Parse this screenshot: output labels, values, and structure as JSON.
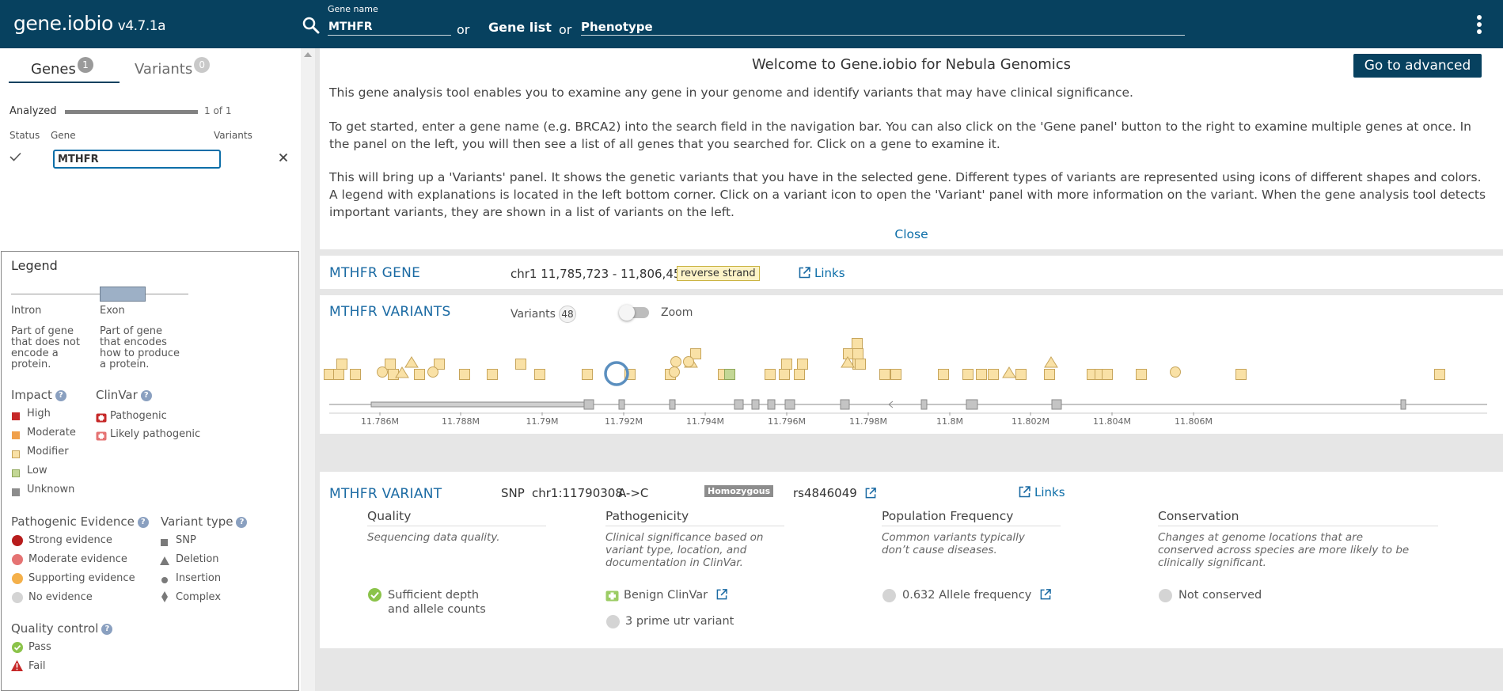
{
  "header": {
    "app_name": "gene.iobio",
    "version": "v4.7.1a",
    "gene_field_label": "Gene name",
    "gene_value": "MTHFR",
    "or_1": "or",
    "gene_list_label": "Gene list",
    "or_2": "or",
    "phenotype_placeholder": "Phenotype"
  },
  "left": {
    "tabs": [
      {
        "label": "Genes",
        "count": "1"
      },
      {
        "label": "Variants",
        "count": "0"
      }
    ],
    "analyzed_label": "Analyzed",
    "analyzed_progress": 1.0,
    "analyzed_count": "1 of 1",
    "columns": [
      "Status",
      "Gene",
      "Variants"
    ],
    "gene_row": {
      "gene": "MTHFR"
    }
  },
  "legend": {
    "title": "Legend",
    "intron_label": "Intron",
    "exon_label": "Exon",
    "intron_desc": [
      "Part of gene",
      "that does not",
      "encode a",
      "protein."
    ],
    "exon_desc": [
      "Part of gene",
      "that encodes",
      "how to produce",
      "a protein."
    ],
    "impact_title": "Impact",
    "impact_items": [
      {
        "label": "High",
        "color": "#c62828"
      },
      {
        "label": "Moderate",
        "color": "#f0a04b"
      },
      {
        "label": "Modifier",
        "color": "#f9e1a6"
      },
      {
        "label": "Low",
        "color": "#c3d795"
      },
      {
        "label": "Unknown",
        "color": "#8c8c8c"
      }
    ],
    "clinvar_title": "ClinVar",
    "clinvar_items": [
      "Pathogenic",
      "Likely pathogenic"
    ],
    "pathogenic_title": "Pathogenic Evidence",
    "pathogenic_items": [
      {
        "label": "Strong evidence",
        "color": "#b71c1c"
      },
      {
        "label": "Moderate evidence",
        "color": "#e57373"
      },
      {
        "label": "Supporting evidence",
        "color": "#f4b04a"
      },
      {
        "label": "No evidence",
        "color": "#d4d4d4"
      }
    ],
    "variant_type_title": "Variant type",
    "variant_type_items": [
      "SNP",
      "Deletion",
      "Insertion",
      "Complex"
    ],
    "qc_title": "Quality control",
    "qc_items": [
      "Pass",
      "Fail"
    ]
  },
  "welcome": {
    "title": "Welcome to Gene.iobio for Nebula Genomics",
    "advanced_button": "Go to advanced",
    "p1": "This gene analysis tool enables you to examine any gene in your genome and identify variants that may have clinical significance.",
    "p2": "To get started, enter a gene name (e.g. BRCA2) into the search field in the navigation bar. You can also click on the 'Gene panel' button to the right to examine multiple genes at once. In the panel on the left, you will then see a list of all genes that you searched for. Click on a gene to examine it.",
    "p3": "This will bring up a 'Variants' panel. It shows the genetic variants that you have in the selected gene. Different types of variants are represented using icons of different shapes and colors. A legend with explanations is located in the left bottom corner. Click on a variant icon to open the 'Variant' panel with more information on the variant. When the gene analysis tool detects important variants, they are shown in a list of variants on the left.",
    "close": "Close"
  },
  "gene_card": {
    "title": "MTHFR GENE",
    "coords": "chr1  11,785,723 - 11,806,455",
    "strand": "reverse strand",
    "links": "Links"
  },
  "variants_card": {
    "title": "MTHFR VARIANTS",
    "count_label": "Variants",
    "count": "48",
    "zoom_label": "Zoom",
    "ticks": [
      "11.786M",
      "11.788M",
      "11.79M",
      "11.792M",
      "11.794M",
      "11.796M",
      "11.798M",
      "11.8M",
      "11.802M",
      "11.804M",
      "11.806M"
    ]
  },
  "variant_card": {
    "title": "MTHFR VARIANT",
    "type": "SNP",
    "position": "chr1:11790308",
    "change": "A->C",
    "zygosity": "Homozygous",
    "rsid": "rs4846049",
    "links": "Links",
    "quality": {
      "title": "Quality",
      "desc": "Sequencing data quality.",
      "item_line1": "Sufficient depth",
      "item_line2": "and allele counts"
    },
    "pathogenicity": {
      "title": "Pathogenicity",
      "desc_lines": [
        "Clinical significance based on",
        "variant type, location, and",
        "documentation in ClinVar."
      ],
      "item1": "Benign ClinVar",
      "item2": "3 prime utr variant"
    },
    "population": {
      "title": "Population Frequency",
      "desc_lines": [
        "Common variants typically",
        "don’t cause diseases."
      ],
      "item": "0.632 Allele frequency"
    },
    "conservation": {
      "title": "Conservation",
      "desc_lines": [
        "Changes at genome locations that are",
        "conserved across species are more likely to be",
        "clinically significant."
      ],
      "item": "Not conserved"
    }
  }
}
